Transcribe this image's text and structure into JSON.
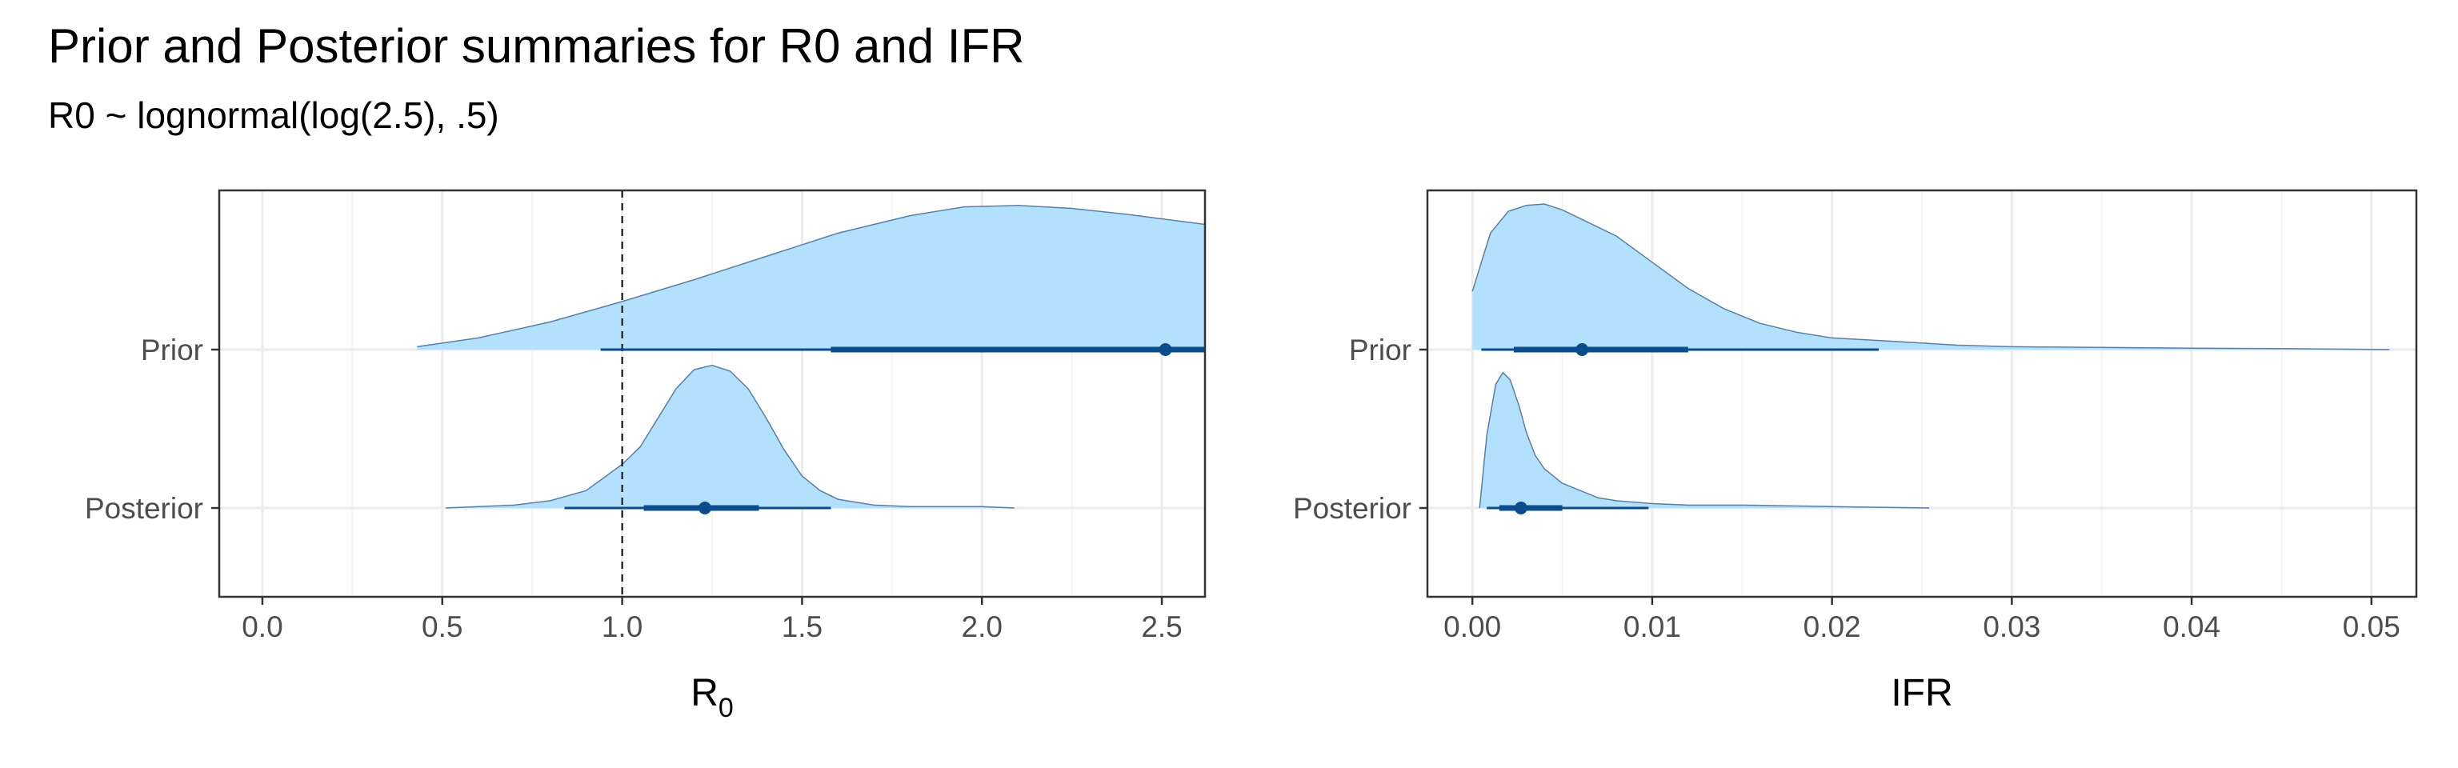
{
  "title": "Prior and Posterior summaries for R0 and IFR",
  "subtitle": "R0 ~ lognormal(log(2.5), .5)",
  "colors": {
    "density_fill": "#b3e0fc",
    "density_line": "#5b7fa3",
    "interval": "#0a4c8c",
    "grid_major": "#ebebeb",
    "grid_minor": "#f5f5f5",
    "panel_border": "#333333",
    "reference_line": "#000000"
  },
  "chart_data": [
    {
      "type": "halfeye",
      "panel": "R0",
      "xlabel_main": "R",
      "xlabel_sub": "0",
      "categories": [
        "Prior",
        "Posterior"
      ],
      "xlim": [
        -0.12,
        2.62
      ],
      "xticks": [
        0.0,
        0.5,
        1.0,
        1.5,
        2.0,
        2.5
      ],
      "xtick_labels": [
        "0.0",
        "0.5",
        "1.0",
        "1.5",
        "2.0",
        "2.5"
      ],
      "reference_line_x": 1.0,
      "series": [
        {
          "name": "Prior",
          "point": 2.51,
          "interval_66": [
            1.58,
            2.62
          ],
          "interval_95": [
            0.94,
            2.62
          ],
          "density": [
            [
              0.43,
              0.02
            ],
            [
              0.6,
              0.08
            ],
            [
              0.8,
              0.19
            ],
            [
              1.0,
              0.33
            ],
            [
              1.2,
              0.48
            ],
            [
              1.4,
              0.64
            ],
            [
              1.6,
              0.8
            ],
            [
              1.8,
              0.92
            ],
            [
              1.95,
              0.98
            ],
            [
              2.1,
              0.99
            ],
            [
              2.25,
              0.97
            ],
            [
              2.4,
              0.93
            ],
            [
              2.62,
              0.86
            ]
          ]
        },
        {
          "name": "Posterior",
          "point": 1.23,
          "interval_66": [
            1.06,
            1.38
          ],
          "interval_95": [
            0.84,
            1.58
          ],
          "density": [
            [
              0.51,
              0.0
            ],
            [
              0.6,
              0.01
            ],
            [
              0.7,
              0.02
            ],
            [
              0.8,
              0.05
            ],
            [
              0.9,
              0.12
            ],
            [
              1.0,
              0.3
            ],
            [
              1.05,
              0.42
            ],
            [
              1.1,
              0.62
            ],
            [
              1.15,
              0.82
            ],
            [
              1.2,
              0.95
            ],
            [
              1.25,
              0.98
            ],
            [
              1.3,
              0.94
            ],
            [
              1.35,
              0.82
            ],
            [
              1.4,
              0.62
            ],
            [
              1.45,
              0.4
            ],
            [
              1.5,
              0.22
            ],
            [
              1.55,
              0.12
            ],
            [
              1.6,
              0.06
            ],
            [
              1.7,
              0.02
            ],
            [
              1.8,
              0.01
            ],
            [
              2.0,
              0.01
            ],
            [
              2.09,
              0.0
            ]
          ]
        }
      ]
    },
    {
      "type": "halfeye",
      "panel": "IFR",
      "xlabel_main": "IFR",
      "xlabel_sub": "",
      "categories": [
        "Prior",
        "Posterior"
      ],
      "xlim": [
        -0.0025,
        0.0525
      ],
      "xticks": [
        0.0,
        0.01,
        0.02,
        0.03,
        0.04,
        0.05
      ],
      "xtick_labels": [
        "0.00",
        "0.01",
        "0.02",
        "0.03",
        "0.04",
        "0.05"
      ],
      "series": [
        {
          "name": "Prior",
          "point": 0.0061,
          "interval_66": [
            0.0023,
            0.012
          ],
          "interval_95": [
            0.0005,
            0.0226
          ],
          "density": [
            [
              0.0,
              0.4
            ],
            [
              0.001,
              0.8
            ],
            [
              0.002,
              0.95
            ],
            [
              0.003,
              0.99
            ],
            [
              0.004,
              1.0
            ],
            [
              0.005,
              0.96
            ],
            [
              0.006,
              0.9
            ],
            [
              0.008,
              0.78
            ],
            [
              0.01,
              0.6
            ],
            [
              0.012,
              0.42
            ],
            [
              0.014,
              0.28
            ],
            [
              0.016,
              0.18
            ],
            [
              0.018,
              0.12
            ],
            [
              0.02,
              0.08
            ],
            [
              0.023,
              0.06
            ],
            [
              0.027,
              0.03
            ],
            [
              0.03,
              0.02
            ],
            [
              0.035,
              0.015
            ],
            [
              0.04,
              0.01
            ],
            [
              0.045,
              0.007
            ],
            [
              0.051,
              0.0
            ]
          ]
        },
        {
          "name": "Posterior",
          "point": 0.0027,
          "interval_66": [
            0.0015,
            0.005
          ],
          "interval_95": [
            0.0008,
            0.0098
          ],
          "density": [
            [
              0.0004,
              0.0
            ],
            [
              0.0008,
              0.5
            ],
            [
              0.0013,
              0.85
            ],
            [
              0.0017,
              0.93
            ],
            [
              0.0021,
              0.88
            ],
            [
              0.0026,
              0.7
            ],
            [
              0.003,
              0.52
            ],
            [
              0.0035,
              0.36
            ],
            [
              0.004,
              0.27
            ],
            [
              0.005,
              0.17
            ],
            [
              0.006,
              0.12
            ],
            [
              0.007,
              0.07
            ],
            [
              0.008,
              0.05
            ],
            [
              0.01,
              0.03
            ],
            [
              0.012,
              0.02
            ],
            [
              0.015,
              0.02
            ],
            [
              0.02,
              0.01
            ],
            [
              0.0254,
              0.0
            ]
          ]
        }
      ]
    }
  ]
}
